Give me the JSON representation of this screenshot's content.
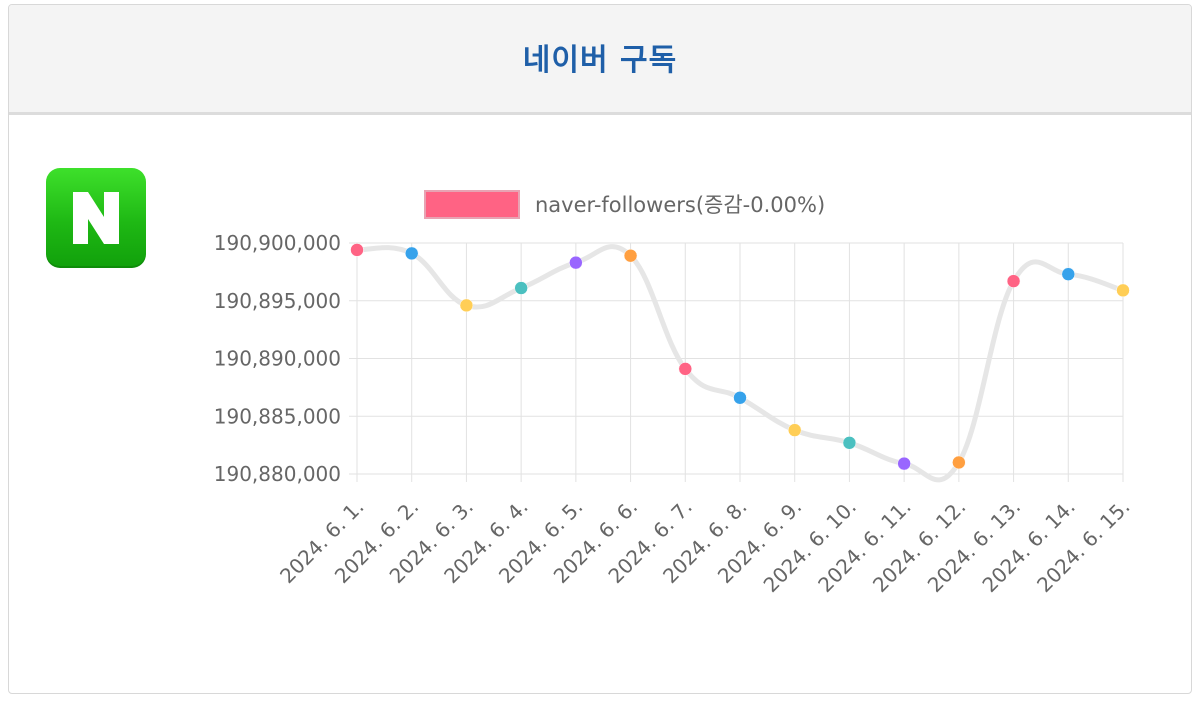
{
  "header": {
    "title": "네이버 구독"
  },
  "logo": {
    "icon": "naver-logo-icon",
    "brand_color": "#1fb814"
  },
  "chart_data": {
    "type": "line",
    "title": "",
    "xlabel": "",
    "ylabel": "",
    "categories": [
      "2024. 6. 1.",
      "2024. 6. 2.",
      "2024. 6. 3.",
      "2024. 6. 4.",
      "2024. 6. 5.",
      "2024. 6. 6.",
      "2024. 6. 7.",
      "2024. 6. 8.",
      "2024. 6. 9.",
      "2024. 6. 10.",
      "2024. 6. 11.",
      "2024. 6. 12.",
      "2024. 6. 13.",
      "2024. 6. 14.",
      "2024. 6. 15."
    ],
    "series": [
      {
        "name": "naver-followers(증감-0.00%)",
        "values": [
          190899400,
          190899100,
          190894600,
          190896100,
          190898300,
          190898900,
          190889100,
          190886600,
          190883800,
          190882700,
          190880900,
          190881000,
          190896700,
          190897300,
          190895900
        ],
        "line_color": "#e6e6e6",
        "legend_color": "#ff6384",
        "point_colors": [
          "#ff6384",
          "#36a2eb",
          "#ffce56",
          "#4bc0c0",
          "#9966ff",
          "#ff9f40",
          "#ff6384",
          "#36a2eb",
          "#ffce56",
          "#4bc0c0",
          "#9966ff",
          "#ff9f40",
          "#ff6384",
          "#36a2eb",
          "#ffce56"
        ]
      }
    ],
    "ylim": [
      190880000,
      190900000
    ],
    "yticks": [
      190880000,
      190885000,
      190890000,
      190895000,
      190900000
    ],
    "ytick_labels": [
      "190,880,000",
      "190,885,000",
      "190,890,000",
      "190,895,000",
      "190,900,000"
    ],
    "grid": true,
    "legend": "top"
  }
}
